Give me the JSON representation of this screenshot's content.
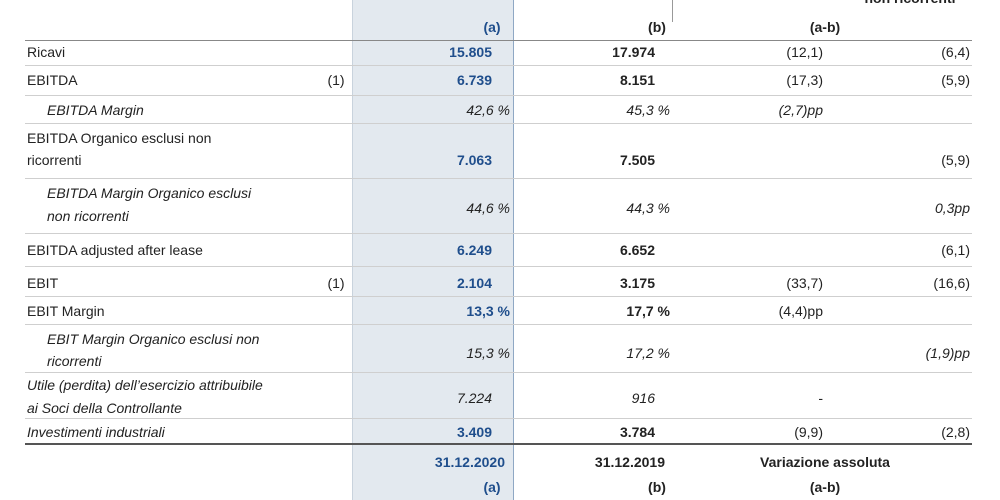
{
  "header_top": {
    "col_a": "(a)",
    "col_b": "(b)",
    "col_diff": "(a-b)",
    "col_last": "non ricorrenti"
  },
  "rows": [
    {
      "label": [
        "Ricavi"
      ],
      "a": "15.805",
      "b": "17.974",
      "diff": "(12,1)",
      "last": "(6,4)"
    },
    {
      "label": [
        "EBITDA"
      ],
      "note": "(1)",
      "a": "6.739",
      "b": "8.151",
      "diff": "(17,3)",
      "last": "(5,9)"
    },
    {
      "label": [
        "EBITDA Margin"
      ],
      "a": "42,6 %",
      "b": "45,3 %",
      "diff": "(2,7)pp"
    },
    {
      "label": [
        "EBITDA Organico esclusi non",
        "ricorrenti"
      ],
      "a": "7.063",
      "b": "7.505",
      "last": "(5,9)"
    },
    {
      "label": [
        "EBITDA Margin Organico esclusi",
        "non ricorrenti"
      ],
      "a": "44,6 %",
      "b": "44,3 %",
      "last": "0,3pp"
    },
    {
      "label": [
        "EBITDA adjusted after lease"
      ],
      "a": "6.249",
      "b": "6.652",
      "last": "(6,1)"
    },
    {
      "label": [
        "EBIT"
      ],
      "note": "(1)",
      "a": "2.104",
      "b": "3.175",
      "diff": "(33,7)",
      "last": "(16,6)"
    },
    {
      "label": [
        "EBIT Margin"
      ],
      "a": "13,3 %",
      "b": "17,7 %",
      "diff": "(4,4)pp"
    },
    {
      "label": [
        "EBIT Margin Organico esclusi non",
        "ricorrenti"
      ],
      "a": "15,3 %",
      "b": "17,2 %",
      "last": "(1,9)pp"
    },
    {
      "label": [
        "Utile (perdita) dell’esercizio attribuibile",
        "ai Soci della Controllante"
      ],
      "a": "7.224",
      "b": "916",
      "diff": "-"
    },
    {
      "label": [
        "Investimenti industriali"
      ],
      "a": "3.409",
      "b": "3.784",
      "diff": "(9,9)",
      "last": "(2,8)"
    }
  ],
  "footer": {
    "date_a": "31.12.2020",
    "date_b": "31.12.2019",
    "diff_title": "Variazione assoluta",
    "col_a": "(a)",
    "col_b": "(b)",
    "col_diff": "(a-b)"
  }
}
